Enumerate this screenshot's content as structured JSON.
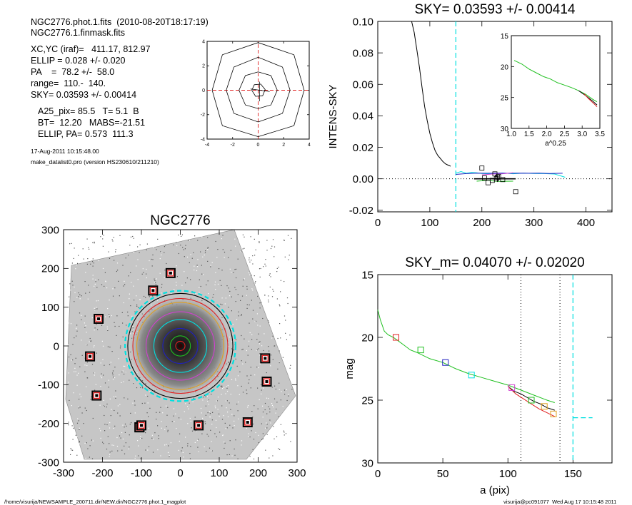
{
  "header": {
    "file_line": "NGC2776.phot.1.fits  (2010-08-20T18:17:19)",
    "mask_line": "NGC2776.1.finmask.fits",
    "xcyc_line": "XC,YC (iraf)=   411.17, 812.97",
    "ellip_line": "ELLIP = 0.028 +/- 0.020",
    "pa_line": "PA    =  78.2 +/-  58.0",
    "range_line": "range=  110.-  140.",
    "sky_line": "SKY= 0.03593 +/- 0.00414",
    "a25_line": "A25_pix= 85.5   T= 5.1  B",
    "bt_line": "BT=  12.20   MABS=-21.51",
    "ellippa_line": "ELLIP, PA= 0.573  111.3",
    "date_line": "17-Aug-2011 10:15:48.00",
    "prog_line": "make_datalist0.pro (version HS230610/211210)"
  },
  "footer": {
    "path": "/home/visurija/NEWSAMPLE_200711.dir/NEW.dir/NGC2776.phot.1_magplot",
    "user": "visurija@pc091077  Wed Aug 17 10:15:48 2011"
  },
  "colors": {
    "cyan": "#00e0e0",
    "red": "#e02020",
    "green": "#20c020",
    "blue": "#2020c0",
    "magenta": "#d040d0",
    "orange": "#e0a020"
  },
  "chart_data": [
    {
      "type": "contour",
      "id": "centroid",
      "xlim": [
        -4,
        4
      ],
      "ylim": [
        -4,
        4
      ],
      "xticks": [
        -4,
        -2,
        0,
        2,
        4
      ],
      "yticks": [
        -4,
        -2,
        0,
        2,
        4
      ],
      "contours": [
        [
          [
            -0.5,
            0
          ],
          [
            -0.3,
            0.45
          ],
          [
            0.2,
            0.5
          ],
          [
            0.55,
            0.05
          ],
          [
            0.35,
            -0.45
          ],
          [
            -0.2,
            -0.5
          ]
        ],
        [
          [
            -1.5,
            0
          ],
          [
            -1,
            1.2
          ],
          [
            0,
            1.5
          ],
          [
            1,
            1.2
          ],
          [
            1.5,
            0
          ],
          [
            1,
            -1.2
          ],
          [
            0,
            -1.5
          ],
          [
            -1,
            -1.2
          ]
        ],
        [
          [
            -2.5,
            0
          ],
          [
            -1.9,
            1.9
          ],
          [
            0,
            2.7
          ],
          [
            1.9,
            1.9
          ],
          [
            2.5,
            0
          ],
          [
            1.9,
            -1.9
          ],
          [
            0,
            -2.6
          ],
          [
            -1.9,
            -1.9
          ]
        ],
        [
          [
            -3.6,
            0
          ],
          [
            -2.8,
            2.9
          ],
          [
            0,
            3.9
          ],
          [
            2.8,
            2.9
          ],
          [
            3.6,
            0
          ],
          [
            2.8,
            -2.9
          ],
          [
            0,
            -3.8
          ],
          [
            -2.8,
            -2.9
          ]
        ]
      ]
    },
    {
      "type": "line",
      "id": "intens",
      "title": "SKY= 0.03593 +/- 0.00414",
      "ylabel": "INTENS-SKY",
      "xlim": [
        0,
        450
      ],
      "ylim": [
        -0.021,
        0.1
      ],
      "xticks": [
        0,
        100,
        200,
        300,
        400
      ],
      "yticks": [
        -0.02,
        0.0,
        0.02,
        0.04,
        0.06,
        0.08,
        0.1
      ],
      "ytick_labels": [
        "-0.02",
        "0.00",
        "0.02",
        "0.04",
        "0.06",
        "0.08",
        "0.10"
      ],
      "sky_line_x": 150,
      "profile": {
        "x": [
          65,
          70,
          75,
          80,
          85,
          90,
          95,
          100,
          105,
          110,
          115,
          120,
          125,
          130,
          135,
          140
        ],
        "y": [
          0.1,
          0.093,
          0.082,
          0.071,
          0.058,
          0.046,
          0.037,
          0.029,
          0.023,
          0.018,
          0.015,
          0.013,
          0.011,
          0.0095,
          0.0087,
          0.008
        ]
      },
      "sky_series": [
        {
          "color": "cyan",
          "x": [
            150,
            160,
            170,
            180,
            190,
            200,
            220,
            240,
            260,
            280,
            300,
            320,
            340,
            360
          ],
          "y": [
            0.0036,
            0.0046,
            0.0035,
            0.004,
            0.0038,
            0.0034,
            0.0031,
            0.0037,
            0.0032,
            0.0036,
            0.0034,
            0.0033,
            0.003,
            0.001
          ]
        },
        {
          "color": "blue",
          "x": [
            150,
            170,
            190,
            210,
            230,
            250,
            270,
            290,
            310,
            330,
            355
          ],
          "y": [
            0.0028,
            0.0033,
            0.0036,
            0.0035,
            0.0036,
            0.0035,
            0.0036,
            0.0035,
            0.0036,
            0.0034,
            0.0035
          ]
        },
        {
          "color": "magenta",
          "x": [
            200,
            220,
            240,
            260
          ],
          "y": [
            0.0025,
            0.003,
            0.0032,
            0.0038
          ]
        },
        {
          "color": "green",
          "x": [
            190,
            210,
            230,
            260
          ],
          "y": [
            -0.0015,
            -0.001,
            -0.0016,
            -0.0015
          ]
        }
      ],
      "sky_boxes": {
        "x": [
          200,
          225,
          232,
          228,
          220,
          212,
          205,
          265,
          230,
          240
        ],
        "y": [
          0.0068,
          0.0031,
          0.0015,
          0.0,
          -0.001,
          -0.0025,
          0.0005,
          -0.0082,
          0.001,
          -0.0005
        ]
      },
      "mean_line": {
        "x": [
          185,
          265
        ],
        "y": [
          0.0,
          0.0
        ],
        "errbar_x": 230,
        "errbar_y": [
          -0.002,
          0.002
        ]
      },
      "inset": {
        "xlabel": "a^0.25",
        "xlim": [
          1.0,
          3.5
        ],
        "ylim": [
          30,
          15
        ],
        "xticks": [
          1.0,
          1.5,
          2.0,
          2.5,
          3.0,
          3.5
        ],
        "yticks": [
          15,
          20,
          25,
          30
        ],
        "green": {
          "x": [
            1.08,
            1.3,
            1.5,
            1.7,
            1.9,
            2.1,
            2.3,
            2.5,
            2.7,
            2.9,
            3.1,
            3.3,
            3.42
          ],
          "y": [
            19.0,
            19.6,
            20.4,
            21.0,
            21.6,
            22.0,
            22.6,
            23.0,
            23.4,
            23.9,
            24.5,
            25.3,
            25.7
          ]
        },
        "black": {
          "x": [
            2.9,
            3.1,
            3.3,
            3.42
          ],
          "y": [
            23.9,
            24.7,
            25.6,
            26.2
          ]
        },
        "red": {
          "x": [
            3.05,
            3.2,
            3.35,
            3.42
          ],
          "y": [
            24.4,
            25.3,
            26.1,
            26.5
          ]
        }
      }
    },
    {
      "type": "image",
      "id": "galaxy",
      "title": "NGC2776",
      "xlim": [
        -300,
        300
      ],
      "ylim": [
        -300,
        300
      ],
      "xticks": [
        -300,
        -200,
        -100,
        0,
        100,
        200,
        300
      ],
      "yticks": [
        -300,
        -200,
        -100,
        0,
        100,
        200,
        300
      ],
      "masked_boxes": {
        "x": [
          -25,
          -70,
          -105,
          -105,
          -210,
          -232,
          -215,
          -100,
          47,
          173,
          218,
          222
        ],
        "y": [
          188,
          143,
          -210,
          -210,
          70,
          -27,
          -128,
          -205,
          -205,
          -197,
          -32,
          -92
        ]
      },
      "ellipses": [
        {
          "color": "black",
          "r": 135
        },
        {
          "color": "red",
          "r": 122
        },
        {
          "color": "cyan",
          "r": 142,
          "dashed": true
        },
        {
          "color": "orange",
          "r": 112
        },
        {
          "color": "magenta",
          "r": 88
        },
        {
          "color": "cyan",
          "r": 68
        },
        {
          "color": "blue",
          "r": 45
        },
        {
          "color": "green",
          "r": 26
        },
        {
          "color": "red",
          "r": 12
        }
      ]
    },
    {
      "type": "line",
      "id": "mag",
      "title": "SKY_m=  0.04070 +/- 0.02020",
      "xlabel": "a (pix)",
      "ylabel": "mag",
      "xlim": [
        0,
        180
      ],
      "ylim": [
        30,
        15
      ],
      "xticks": [
        0,
        50,
        100,
        150
      ],
      "yticks": [
        15,
        20,
        25,
        30
      ],
      "vlines_dotted": [
        110,
        140
      ],
      "sky_dashed_x": 150,
      "sky_dashed_y": 26.4,
      "series": [
        {
          "color": "green",
          "x": [
            0,
            2,
            5,
            8,
            12,
            16,
            20,
            25,
            30,
            40,
            50,
            60,
            70,
            80,
            90,
            100,
            110,
            120,
            130,
            136
          ],
          "y": [
            17.8,
            18.6,
            19.5,
            19.8,
            20.0,
            20.3,
            20.6,
            21.0,
            21.2,
            21.7,
            22.0,
            22.5,
            22.9,
            23.2,
            23.5,
            23.8,
            24.2,
            24.6,
            25.0,
            25.2
          ]
        },
        {
          "color": "black",
          "x": [
            100,
            105,
            110,
            115,
            120,
            125,
            130,
            136
          ],
          "y": [
            23.9,
            24.3,
            24.5,
            24.8,
            25.1,
            25.3,
            25.6,
            25.8
          ]
        },
        {
          "color": "red",
          "x": [
            100,
            106,
            112,
            118,
            124,
            130,
            136
          ],
          "y": [
            23.9,
            24.5,
            24.9,
            25.3,
            25.7,
            26.0,
            26.3
          ]
        }
      ],
      "boxes": [
        {
          "color": "red",
          "x": 14,
          "y": 20.0
        },
        {
          "color": "green",
          "x": 33,
          "y": 21.0
        },
        {
          "color": "blue",
          "x": 52,
          "y": 22.0
        },
        {
          "color": "cyan",
          "x": 72,
          "y": 23.0
        },
        {
          "color": "magenta",
          "x": 103,
          "y": 24.0
        },
        {
          "color": "green",
          "x": 118,
          "y": 25.0
        },
        {
          "color": "orange",
          "x": 128,
          "y": 25.5
        },
        {
          "color": "orange",
          "x": 135,
          "y": 26.1
        }
      ]
    }
  ]
}
